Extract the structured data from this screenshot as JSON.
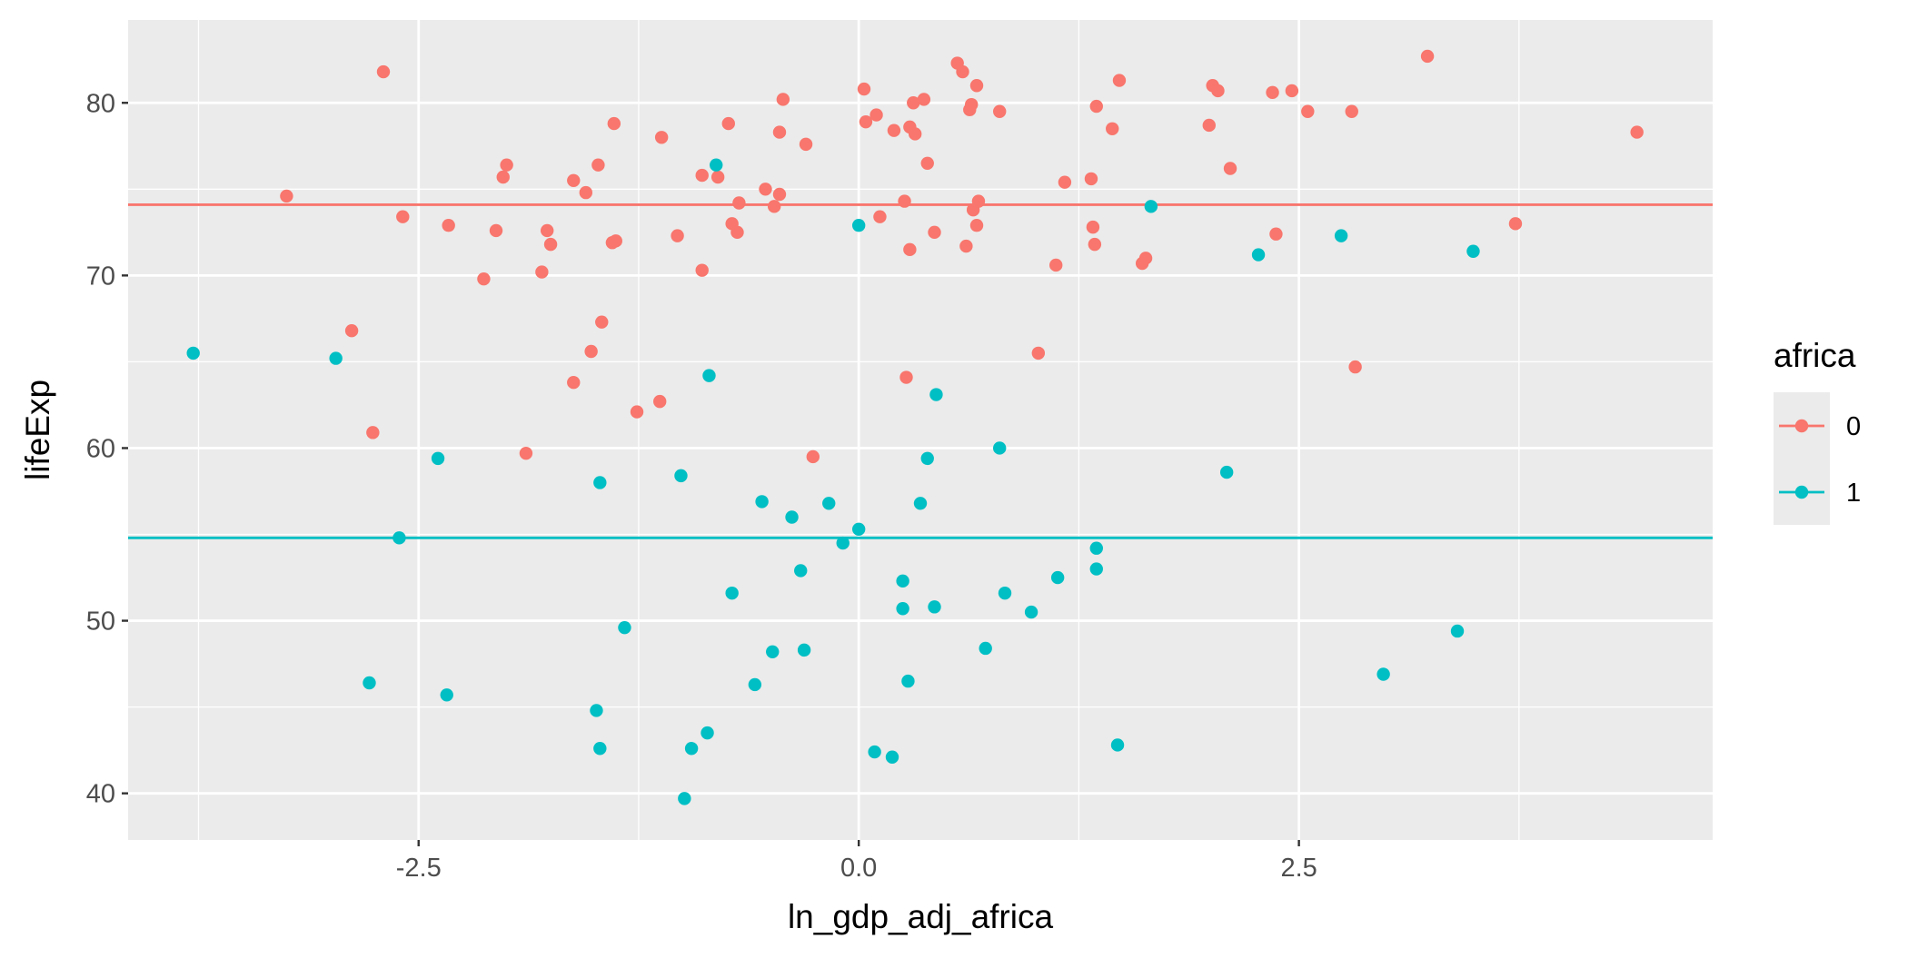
{
  "chart_data": {
    "type": "scatter",
    "title": "",
    "xlabel": "ln_gdp_adj_africa",
    "ylabel": "lifeExp",
    "xlim": [
      -4.15,
      4.85
    ],
    "ylim": [
      37.3,
      84.8
    ],
    "x_ticks": [
      -2.5,
      0.0,
      2.5
    ],
    "x_tick_labels": [
      "-2.5",
      "0.0",
      "2.5"
    ],
    "y_ticks": [
      40,
      50,
      60,
      70,
      80
    ],
    "y_tick_labels": [
      "40",
      "50",
      "60",
      "70",
      "80"
    ],
    "grid": true,
    "background": "#EBEBEB",
    "legend": {
      "title": "africa",
      "position": "right",
      "items": [
        {
          "label": "0",
          "color": "#F8766D"
        },
        {
          "label": "1",
          "color": "#00BFC4"
        }
      ]
    },
    "reference_lines": [
      {
        "group": "0",
        "y": 74.1,
        "color": "#F8766D"
      },
      {
        "group": "1",
        "y": 54.8,
        "color": "#00BFC4"
      }
    ],
    "series": [
      {
        "group": "0",
        "color": "#F8766D",
        "points": [
          [
            -3.25,
            74.6
          ],
          [
            -2.7,
            81.8
          ],
          [
            -2.59,
            73.4
          ],
          [
            -2.88,
            66.8
          ],
          [
            -2.76,
            60.9
          ],
          [
            -2.33,
            72.9
          ],
          [
            -2.13,
            69.8
          ],
          [
            -2.06,
            72.6
          ],
          [
            -2.02,
            75.7
          ],
          [
            -2.0,
            76.4
          ],
          [
            -1.89,
            59.7
          ],
          [
            -1.8,
            70.2
          ],
          [
            -1.77,
            72.6
          ],
          [
            -1.75,
            71.8
          ],
          [
            -1.62,
            75.5
          ],
          [
            -1.62,
            63.8
          ],
          [
            -1.55,
            74.8
          ],
          [
            -1.52,
            65.6
          ],
          [
            -1.48,
            76.4
          ],
          [
            -1.46,
            67.3
          ],
          [
            -1.4,
            71.9
          ],
          [
            -1.38,
            72.0
          ],
          [
            -1.39,
            78.8
          ],
          [
            -1.26,
            62.1
          ],
          [
            -1.13,
            62.7
          ],
          [
            -1.12,
            78.0
          ],
          [
            -1.03,
            72.3
          ],
          [
            -0.89,
            70.3
          ],
          [
            -0.89,
            75.8
          ],
          [
            -0.8,
            75.7
          ],
          [
            -0.74,
            78.8
          ],
          [
            -0.72,
            73.0
          ],
          [
            -0.69,
            72.5
          ],
          [
            -0.68,
            74.2
          ],
          [
            -0.53,
            75.0
          ],
          [
            -0.48,
            74.0
          ],
          [
            -0.45,
            74.7
          ],
          [
            -0.45,
            78.3
          ],
          [
            -0.43,
            80.2
          ],
          [
            -0.3,
            77.6
          ],
          [
            -0.26,
            59.5
          ],
          [
            0.03,
            80.8
          ],
          [
            0.04,
            78.9
          ],
          [
            0.1,
            79.3
          ],
          [
            0.12,
            73.4
          ],
          [
            0.2,
            78.4
          ],
          [
            0.26,
            74.3
          ],
          [
            0.27,
            64.1
          ],
          [
            0.29,
            71.5
          ],
          [
            0.29,
            78.6
          ],
          [
            0.31,
            80.0
          ],
          [
            0.32,
            78.2
          ],
          [
            0.37,
            80.2
          ],
          [
            0.39,
            76.5
          ],
          [
            0.43,
            72.5
          ],
          [
            0.56,
            82.3
          ],
          [
            0.59,
            81.8
          ],
          [
            0.61,
            71.7
          ],
          [
            0.63,
            79.6
          ],
          [
            0.64,
            79.9
          ],
          [
            0.65,
            73.8
          ],
          [
            0.67,
            81.0
          ],
          [
            0.67,
            72.9
          ],
          [
            0.68,
            74.3
          ],
          [
            0.8,
            79.5
          ],
          [
            1.02,
            65.5
          ],
          [
            1.12,
            70.6
          ],
          [
            1.17,
            75.4
          ],
          [
            1.32,
            75.6
          ],
          [
            1.33,
            72.8
          ],
          [
            1.34,
            71.8
          ],
          [
            1.35,
            79.8
          ],
          [
            1.44,
            78.5
          ],
          [
            1.48,
            81.3
          ],
          [
            1.61,
            70.7
          ],
          [
            1.63,
            71.0
          ],
          [
            1.99,
            78.7
          ],
          [
            2.01,
            81.0
          ],
          [
            2.04,
            80.7
          ],
          [
            2.11,
            76.2
          ],
          [
            2.35,
            80.6
          ],
          [
            2.37,
            72.4
          ],
          [
            2.46,
            80.7
          ],
          [
            2.55,
            79.5
          ],
          [
            2.8,
            79.5
          ],
          [
            2.82,
            64.7
          ],
          [
            3.23,
            82.7
          ],
          [
            3.73,
            73.0
          ],
          [
            4.42,
            78.3
          ]
        ]
      },
      {
        "group": "1",
        "color": "#00BFC4",
        "points": [
          [
            -3.78,
            65.5
          ],
          [
            -2.97,
            65.2
          ],
          [
            -2.78,
            46.4
          ],
          [
            -2.61,
            54.8
          ],
          [
            -2.39,
            59.4
          ],
          [
            -2.34,
            45.7
          ],
          [
            -1.49,
            44.8
          ],
          [
            -1.47,
            42.6
          ],
          [
            -1.47,
            58.0
          ],
          [
            -1.33,
            49.6
          ],
          [
            -1.01,
            58.4
          ],
          [
            -0.99,
            39.7
          ],
          [
            -0.95,
            42.6
          ],
          [
            -0.86,
            43.5
          ],
          [
            -0.85,
            64.2
          ],
          [
            -0.81,
            76.4
          ],
          [
            -0.72,
            51.6
          ],
          [
            -0.59,
            46.3
          ],
          [
            -0.55,
            56.9
          ],
          [
            -0.49,
            48.2
          ],
          [
            -0.38,
            56.0
          ],
          [
            -0.33,
            52.9
          ],
          [
            -0.31,
            48.3
          ],
          [
            -0.17,
            56.8
          ],
          [
            -0.09,
            54.5
          ],
          [
            0.0,
            72.9
          ],
          [
            0.0,
            55.3
          ],
          [
            0.09,
            42.4
          ],
          [
            0.19,
            42.1
          ],
          [
            0.25,
            52.3
          ],
          [
            0.25,
            50.7
          ],
          [
            0.28,
            46.5
          ],
          [
            0.35,
            56.8
          ],
          [
            0.39,
            59.4
          ],
          [
            0.43,
            50.8
          ],
          [
            0.44,
            63.1
          ],
          [
            0.72,
            48.4
          ],
          [
            0.8,
            60.0
          ],
          [
            0.83,
            51.6
          ],
          [
            0.98,
            50.5
          ],
          [
            1.13,
            52.5
          ],
          [
            1.35,
            54.2
          ],
          [
            1.35,
            53.0
          ],
          [
            1.47,
            42.8
          ],
          [
            1.66,
            74.0
          ],
          [
            2.09,
            58.6
          ],
          [
            2.27,
            71.2
          ],
          [
            2.74,
            72.3
          ],
          [
            2.98,
            46.9
          ],
          [
            3.4,
            49.4
          ],
          [
            3.49,
            71.4
          ]
        ]
      }
    ]
  }
}
